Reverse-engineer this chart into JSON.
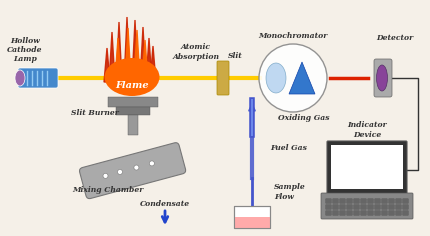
{
  "colors": {
    "bg_color": "#f5f0e8",
    "lamp_body": "#4488cc",
    "lamp_end": "#9966aa",
    "beam_yellow": "#ffcc00",
    "beam_red": "#dd2200",
    "flame_orange": "#ff6600",
    "flame_red": "#cc2200",
    "burner_gray": "#888888",
    "slit_gold": "#ccaa44",
    "monochromator_blue": "#4499cc",
    "prism_blue": "#2255aa",
    "detector_purple": "#884499",
    "gas_tube": "#4455cc",
    "arrow_blue": "#2244cc",
    "beaker_liquid": "#ffaaaa",
    "label_color": "#333333",
    "wire_color": "#333333"
  },
  "labels": {
    "hollow_cathode_lamp": "Hollow\nCathode\nLamp",
    "flame": "Flame",
    "atomic_absorption": "Atomic\nAbsorption",
    "slit": "Slit",
    "monochromator": "Monochromator",
    "detector": "Detector",
    "slit_burner": "Slit Burner",
    "oxiding_gas": "Oxiding Gas",
    "fuel_gas": "Fuel Gas",
    "mixing_chamber": "Mixing Chamber",
    "sample_flow": "Sample\nFlow",
    "condensate": "Condensate",
    "indicator_device": "Indicator\nDevice"
  }
}
